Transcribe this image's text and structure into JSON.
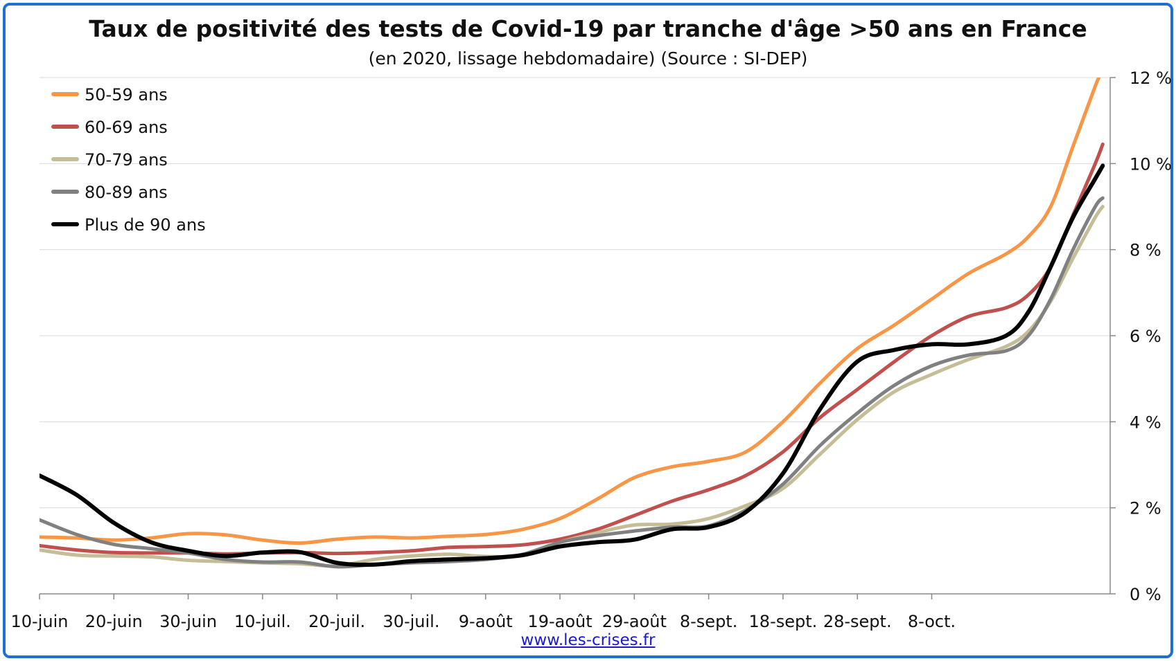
{
  "chart_data": {
    "type": "line",
    "title": "Taux de positivité des tests de Covid-19 par tranche d'âge >50 ans en France",
    "subtitle": "(en 2020, lissage hebdomadaire) (Source : SI-DEP)",
    "xlabel": "",
    "ylabel": "",
    "x_start": "2020-06-10",
    "x_ticks": [
      "10-juin",
      "20-juin",
      "30-juin",
      "10-juil.",
      "20-juil.",
      "30-juil.",
      "9-août",
      "19-août",
      "29-août",
      "8-sept.",
      "18-sept.",
      "28-sept.",
      "8-oct."
    ],
    "y_ticks": [
      "0 %",
      "2 %",
      "4 %",
      "6 %",
      "8 %",
      "10 %",
      "12 %"
    ],
    "ylim": [
      0,
      12
    ],
    "y_axis_side": "right",
    "grid": "horizontal",
    "legend_position": "top-left",
    "series": [
      {
        "name": "50-59 ans",
        "color": "#f79646",
        "points": [
          [
            0,
            1.32
          ],
          [
            5,
            1.3
          ],
          [
            10,
            1.25
          ],
          [
            15,
            1.3
          ],
          [
            20,
            1.4
          ],
          [
            25,
            1.37
          ],
          [
            30,
            1.25
          ],
          [
            35,
            1.18
          ],
          [
            40,
            1.27
          ],
          [
            45,
            1.32
          ],
          [
            50,
            1.3
          ],
          [
            55,
            1.34
          ],
          [
            60,
            1.38
          ],
          [
            65,
            1.5
          ],
          [
            70,
            1.75
          ],
          [
            75,
            2.2
          ],
          [
            80,
            2.7
          ],
          [
            85,
            2.95
          ],
          [
            90,
            3.08
          ],
          [
            95,
            3.3
          ],
          [
            100,
            4.0
          ],
          [
            105,
            4.9
          ],
          [
            110,
            5.7
          ],
          [
            115,
            6.25
          ],
          [
            120,
            6.85
          ],
          [
            125,
            7.45
          ],
          [
            130,
            7.9
          ],
          [
            133,
            8.3
          ],
          [
            136,
            9.0
          ],
          [
            139,
            10.4
          ],
          [
            142,
            11.8
          ],
          [
            143,
            12.2
          ]
        ]
      },
      {
        "name": "60-69 ans",
        "color": "#c0504d",
        "points": [
          [
            0,
            1.12
          ],
          [
            5,
            1.02
          ],
          [
            10,
            0.96
          ],
          [
            15,
            0.95
          ],
          [
            20,
            0.95
          ],
          [
            25,
            0.93
          ],
          [
            30,
            0.95
          ],
          [
            35,
            0.96
          ],
          [
            40,
            0.94
          ],
          [
            45,
            0.96
          ],
          [
            50,
            1.0
          ],
          [
            55,
            1.08
          ],
          [
            60,
            1.1
          ],
          [
            65,
            1.14
          ],
          [
            70,
            1.27
          ],
          [
            75,
            1.5
          ],
          [
            80,
            1.82
          ],
          [
            85,
            2.15
          ],
          [
            90,
            2.42
          ],
          [
            95,
            2.75
          ],
          [
            100,
            3.3
          ],
          [
            105,
            4.1
          ],
          [
            110,
            4.75
          ],
          [
            115,
            5.4
          ],
          [
            120,
            6.0
          ],
          [
            125,
            6.45
          ],
          [
            130,
            6.65
          ],
          [
            133,
            6.95
          ],
          [
            136,
            7.6
          ],
          [
            139,
            8.8
          ],
          [
            142,
            10.0
          ],
          [
            143,
            10.45
          ]
        ]
      },
      {
        "name": "70-79 ans",
        "color": "#c4bd97",
        "points": [
          [
            0,
            1.02
          ],
          [
            5,
            0.9
          ],
          [
            10,
            0.88
          ],
          [
            15,
            0.86
          ],
          [
            20,
            0.78
          ],
          [
            25,
            0.75
          ],
          [
            30,
            0.72
          ],
          [
            35,
            0.7
          ],
          [
            40,
            0.65
          ],
          [
            45,
            0.8
          ],
          [
            50,
            0.88
          ],
          [
            55,
            0.92
          ],
          [
            60,
            0.87
          ],
          [
            65,
            0.9
          ],
          [
            70,
            1.2
          ],
          [
            75,
            1.42
          ],
          [
            80,
            1.6
          ],
          [
            85,
            1.62
          ],
          [
            90,
            1.75
          ],
          [
            95,
            2.05
          ],
          [
            100,
            2.45
          ],
          [
            105,
            3.25
          ],
          [
            110,
            4.05
          ],
          [
            115,
            4.7
          ],
          [
            120,
            5.1
          ],
          [
            125,
            5.45
          ],
          [
            130,
            5.75
          ],
          [
            133,
            6.1
          ],
          [
            136,
            6.8
          ],
          [
            139,
            7.8
          ],
          [
            142,
            8.75
          ],
          [
            143,
            9.0
          ]
        ]
      },
      {
        "name": "80-89 ans",
        "color": "#808080",
        "points": [
          [
            0,
            1.72
          ],
          [
            5,
            1.38
          ],
          [
            10,
            1.15
          ],
          [
            15,
            1.05
          ],
          [
            20,
            0.95
          ],
          [
            25,
            0.8
          ],
          [
            30,
            0.74
          ],
          [
            35,
            0.74
          ],
          [
            40,
            0.63
          ],
          [
            45,
            0.68
          ],
          [
            50,
            0.72
          ],
          [
            55,
            0.75
          ],
          [
            60,
            0.8
          ],
          [
            65,
            0.92
          ],
          [
            70,
            1.2
          ],
          [
            75,
            1.35
          ],
          [
            80,
            1.46
          ],
          [
            85,
            1.55
          ],
          [
            90,
            1.58
          ],
          [
            95,
            1.95
          ],
          [
            100,
            2.55
          ],
          [
            105,
            3.45
          ],
          [
            110,
            4.2
          ],
          [
            115,
            4.85
          ],
          [
            120,
            5.3
          ],
          [
            125,
            5.55
          ],
          [
            130,
            5.65
          ],
          [
            133,
            6.0
          ],
          [
            136,
            6.85
          ],
          [
            139,
            8.0
          ],
          [
            142,
            9.0
          ],
          [
            143,
            9.2
          ]
        ]
      },
      {
        "name": "Plus de 90 ans",
        "color": "#000000",
        "points": [
          [
            0,
            2.75
          ],
          [
            5,
            2.3
          ],
          [
            10,
            1.65
          ],
          [
            15,
            1.2
          ],
          [
            20,
            1.0
          ],
          [
            25,
            0.88
          ],
          [
            30,
            0.96
          ],
          [
            35,
            0.97
          ],
          [
            40,
            0.72
          ],
          [
            45,
            0.68
          ],
          [
            50,
            0.76
          ],
          [
            55,
            0.8
          ],
          [
            60,
            0.83
          ],
          [
            65,
            0.9
          ],
          [
            70,
            1.1
          ],
          [
            75,
            1.2
          ],
          [
            80,
            1.26
          ],
          [
            85,
            1.5
          ],
          [
            90,
            1.55
          ],
          [
            95,
            1.9
          ],
          [
            100,
            2.8
          ],
          [
            105,
            4.3
          ],
          [
            110,
            5.4
          ],
          [
            115,
            5.67
          ],
          [
            120,
            5.8
          ],
          [
            125,
            5.8
          ],
          [
            130,
            6.0
          ],
          [
            133,
            6.55
          ],
          [
            136,
            7.6
          ],
          [
            139,
            8.75
          ],
          [
            142,
            9.65
          ],
          [
            143,
            9.95
          ]
        ]
      }
    ]
  },
  "footer": {
    "source_link": "www.les-crises.fr"
  }
}
